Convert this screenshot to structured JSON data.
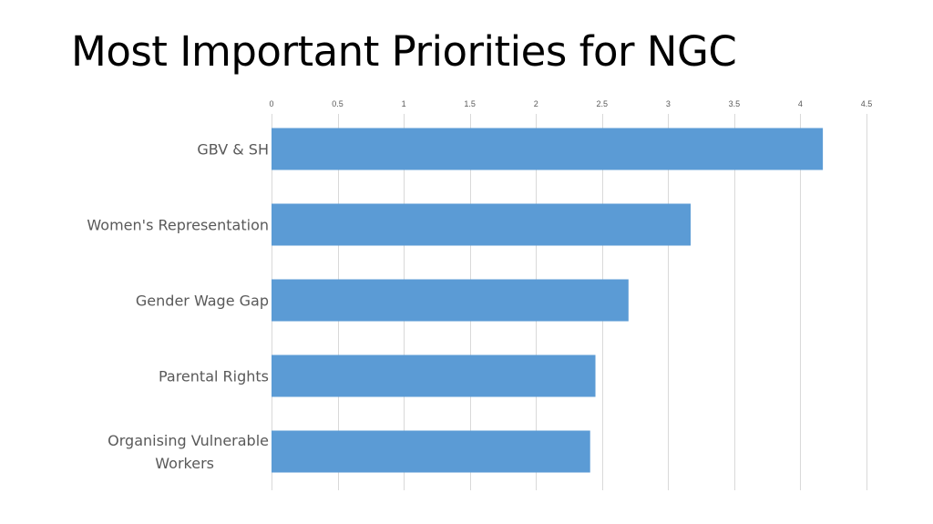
{
  "slide": {
    "title": "Most Important Priorities for NGC"
  },
  "chart_data": {
    "type": "bar",
    "orientation": "horizontal",
    "title": "",
    "xlabel": "",
    "ylabel": "",
    "categories": [
      "GBV & SH",
      "Women's Representation",
      "Gender Wage Gap",
      "Parental Rights",
      "Organising Vulnerable Workers"
    ],
    "category_label_lines": [
      [
        "GBV & SH"
      ],
      [
        "Women's Representation"
      ],
      [
        "Gender Wage Gap"
      ],
      [
        "Parental Rights"
      ],
      [
        "Organising Vulnerable",
        "Workers"
      ]
    ],
    "values": [
      4.17,
      3.17,
      2.7,
      2.45,
      2.41
    ],
    "xlim": [
      0,
      4.5
    ],
    "xticks": [
      0,
      0.5,
      1,
      1.5,
      2,
      2.5,
      3,
      3.5,
      4,
      4.5
    ],
    "xtick_labels": [
      "0",
      "0.5",
      "1",
      "1.5",
      "2",
      "2.5",
      "3",
      "3.5",
      "4",
      "4.5"
    ],
    "axis_position": "top",
    "grid": true,
    "legend": "none",
    "bar_color": "#5B9BD5",
    "grid_color": "#D9D9D9",
    "text_color": "#595959"
  }
}
